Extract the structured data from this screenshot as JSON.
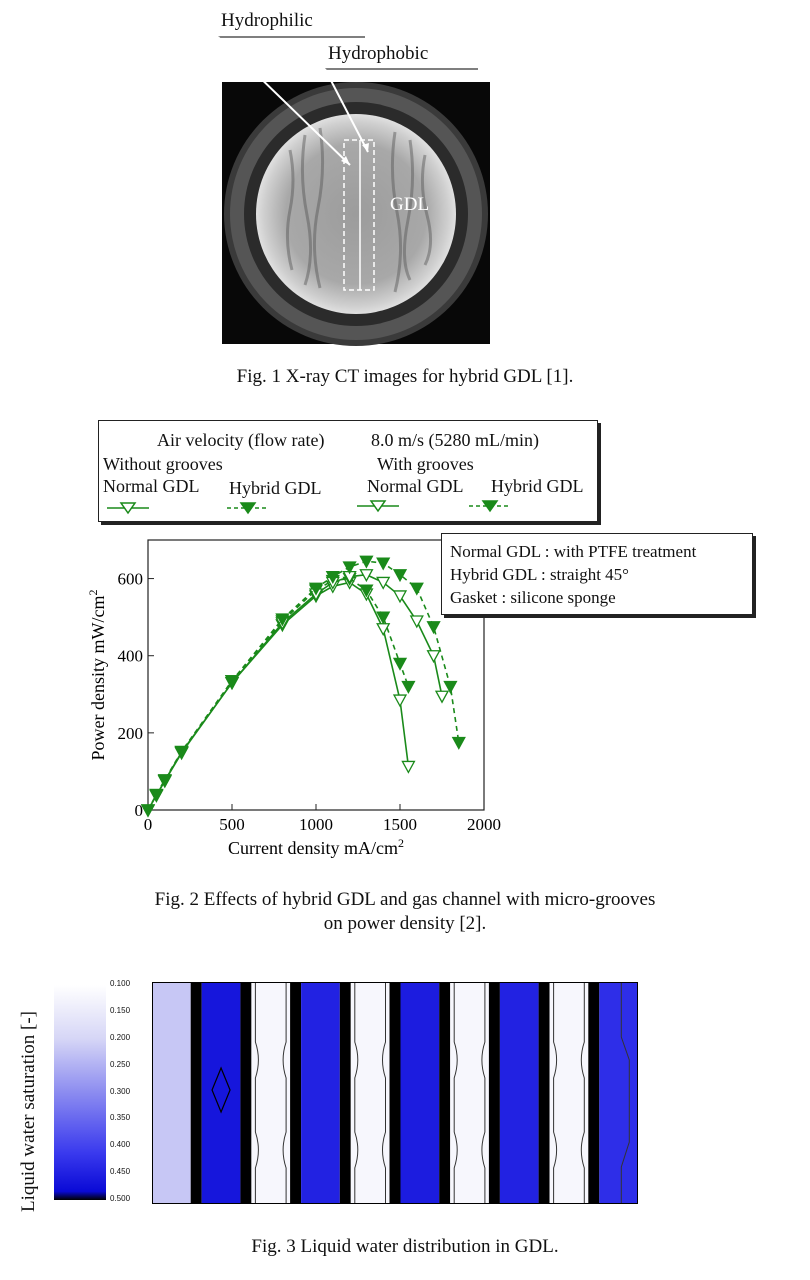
{
  "fig1": {
    "label_hydrophilic": "Hydrophilic",
    "label_hydrophobic": "Hydrophobic",
    "label_gdl": "GDL",
    "caption": "Fig. 1 X-ray CT images for hybrid GDL [1]."
  },
  "fig2": {
    "legend": {
      "air_velocity": "Air velocity (flow rate)",
      "velocity_value": "8.0 m/s (5280 mL/min)",
      "without_grooves": "Without grooves",
      "with_grooves": "With grooves",
      "normal_gdl_1": "Normal GDL",
      "hybrid_gdl_1": "Hybrid GDL",
      "normal_gdl_2": "Normal GDL",
      "hybrid_gdl_2": "Hybrid GDL"
    },
    "notes": [
      "Normal GDL : with PTFE treatment",
      "Hybrid GDL : straight 45°",
      "Gasket : silicone sponge"
    ],
    "caption_line1": "Fig. 2 Effects of hybrid GDL and gas channel with micro-grooves",
    "caption_line2": "on power density [2]."
  },
  "chart_data": {
    "type": "line",
    "xlabel": "Current density  mA/cm",
    "xlabel_sup": "2",
    "ylabel": "Power density  mW/cm",
    "ylabel_sup": "2",
    "xlim": [
      0,
      2000
    ],
    "ylim": [
      0,
      700
    ],
    "xticks": [
      "0",
      "500",
      "1000",
      "1500",
      "2000"
    ],
    "yticks": [
      "0",
      "200",
      "400",
      "600"
    ],
    "grid": false,
    "series": [
      {
        "name": "Normal GDL",
        "group": "Without grooves",
        "marker": "open",
        "dash": false,
        "x": [
          0,
          50,
          100,
          200,
          500,
          800,
          1000,
          1100,
          1200,
          1300,
          1400,
          1500,
          1550
        ],
        "y": [
          0,
          38,
          75,
          148,
          330,
          480,
          555,
          580,
          590,
          560,
          470,
          285,
          113
        ]
      },
      {
        "name": "Hybrid GDL",
        "group": "Without grooves",
        "marker": "filled",
        "dash": true,
        "x": [
          0,
          50,
          100,
          200,
          500,
          800,
          1000,
          1100,
          1200,
          1300,
          1400,
          1500,
          1550
        ],
        "y": [
          0,
          40,
          78,
          150,
          335,
          490,
          570,
          595,
          600,
          570,
          500,
          380,
          320
        ]
      },
      {
        "name": "Normal GDL",
        "group": "With grooves",
        "marker": "open",
        "dash": false,
        "x": [
          0,
          50,
          100,
          200,
          500,
          800,
          1000,
          1100,
          1200,
          1300,
          1400,
          1500,
          1600,
          1700,
          1750
        ],
        "y": [
          0,
          38,
          76,
          150,
          330,
          485,
          560,
          590,
          605,
          610,
          590,
          555,
          490,
          400,
          295
        ]
      },
      {
        "name": "Hybrid GDL",
        "group": "With grooves",
        "marker": "filled",
        "dash": true,
        "x": [
          0,
          50,
          100,
          200,
          500,
          800,
          1000,
          1100,
          1200,
          1300,
          1400,
          1500,
          1600,
          1700,
          1800,
          1850
        ],
        "y": [
          0,
          40,
          78,
          152,
          335,
          495,
          575,
          605,
          630,
          645,
          640,
          610,
          575,
          475,
          320,
          175
        ]
      }
    ]
  },
  "fig3": {
    "colorbar_title": "Liquid water saturation [-]",
    "colorbar_ticks": [
      "0.100",
      "0.150",
      "0.200",
      "0.250",
      "0.300",
      "0.350",
      "0.400",
      "0.450",
      "0.500"
    ],
    "columns": [
      0.22,
      0.46,
      0.12,
      0.44,
      0.12,
      0.45,
      0.12,
      0.44,
      0.12,
      0.42
    ],
    "caption": "Fig. 3 Liquid water distribution in GDL."
  }
}
